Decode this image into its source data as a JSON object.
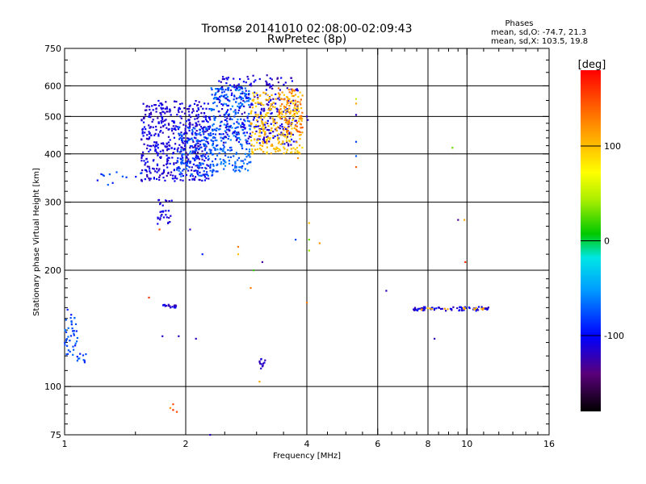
{
  "chart_data": {
    "type": "scatter",
    "title": "Tromsø 20141010 02:08:00-02:09:43",
    "subtitle": "RwPretec (8p)",
    "xlabel": "Frequency [MHz]",
    "ylabel": "Stationary phase Virtual Height [km]",
    "x_scale": "log",
    "y_scale": "log",
    "xlim": [
      1,
      16
    ],
    "ylim": [
      75,
      750
    ],
    "x_ticks": [
      1,
      2,
      4,
      6,
      8,
      10,
      16
    ],
    "x_tick_labels": [
      "1",
      "2",
      "4",
      "6",
      "8",
      "10",
      "16"
    ],
    "y_ticks": [
      75,
      100,
      200,
      300,
      400,
      500,
      600,
      750
    ],
    "y_tick_labels": [
      "75",
      "100",
      "200",
      "300",
      "400",
      "500",
      "600",
      "750"
    ],
    "x_gridlines": [
      2,
      4,
      6,
      8,
      10
    ],
    "y_gridlines": [
      100,
      200,
      300,
      400,
      500,
      600
    ],
    "grid": true,
    "legend": {
      "title": "Phases",
      "lines": [
        "mean, sd,O: -74.7, 21.3",
        "mean, sd,X: 103.5, 19.8"
      ],
      "position": "top-right"
    },
    "colorbar": {
      "label": "[deg]",
      "range": [
        -180,
        180
      ],
      "ticks": [
        100,
        0,
        -100
      ],
      "tick_labels": [
        "100",
        "0",
        "-100"
      ]
    },
    "clusters": [
      {
        "x": [
          1.55,
          2.3
        ],
        "y": [
          340,
          550
        ],
        "phase": -110,
        "n": 520
      },
      {
        "x": [
          1.9,
          2.4
        ],
        "y": [
          350,
          470
        ],
        "phase": -75,
        "n": 160
      },
      {
        "x": [
          2.3,
          2.9
        ],
        "y": [
          360,
          600
        ],
        "phase": -70,
        "n": 280
      },
      {
        "x": [
          2.4,
          3.3
        ],
        "y": [
          420,
          640
        ],
        "phase": -110,
        "n": 180
      },
      {
        "x": [
          3.1,
          3.8
        ],
        "y": [
          420,
          630
        ],
        "phase": -115,
        "n": 120
      },
      {
        "x": [
          2.9,
          3.9
        ],
        "y": [
          400,
          580
        ],
        "phase": 100,
        "n": 260
      },
      {
        "x": [
          3.4,
          3.9
        ],
        "y": [
          450,
          600
        ],
        "phase": 130,
        "n": 60
      },
      {
        "x": [
          1.2,
          1.55
        ],
        "y": [
          330,
          360
        ],
        "phase": -85,
        "n": 12
      },
      {
        "x": [
          1.7,
          1.85
        ],
        "y": [
          262,
          305
        ],
        "phase": -110,
        "n": 30
      },
      {
        "x": [
          1.75,
          1.9
        ],
        "y": [
          160,
          163
        ],
        "phase": -115,
        "n": 18
      },
      {
        "x": [
          1.0,
          1.08
        ],
        "y": [
          120,
          160
        ],
        "phase": -80,
        "n": 40
      },
      {
        "x": [
          1.07,
          1.13
        ],
        "y": [
          115,
          122
        ],
        "phase": -80,
        "n": 10
      },
      {
        "x": [
          3.05,
          3.15
        ],
        "y": [
          111,
          120
        ],
        "phase": -115,
        "n": 12
      },
      {
        "x": [
          7.3,
          11.4
        ],
        "y": [
          157,
          161
        ],
        "phase": -110,
        "n": 70
      },
      {
        "x": [
          7.6,
          11.0
        ],
        "y": [
          158,
          160
        ],
        "phase": 110,
        "n": 16
      }
    ],
    "points": [
      {
        "x": 1.62,
        "y": 170,
        "phase": 160
      },
      {
        "x": 1.83,
        "y": 88,
        "phase": 120
      },
      {
        "x": 1.86,
        "y": 90,
        "phase": 150
      },
      {
        "x": 1.86,
        "y": 87,
        "phase": 160
      },
      {
        "x": 1.9,
        "y": 86,
        "phase": 150
      },
      {
        "x": 1.72,
        "y": 255,
        "phase": 150
      },
      {
        "x": 2.05,
        "y": 255,
        "phase": -120
      },
      {
        "x": 2.2,
        "y": 220,
        "phase": -90
      },
      {
        "x": 2.7,
        "y": 230,
        "phase": 130
      },
      {
        "x": 2.7,
        "y": 220,
        "phase": 100
      },
      {
        "x": 3.1,
        "y": 210,
        "phase": -130
      },
      {
        "x": 2.95,
        "y": 200,
        "phase": 20
      },
      {
        "x": 2.9,
        "y": 180,
        "phase": 130
      },
      {
        "x": 1.75,
        "y": 135,
        "phase": -115
      },
      {
        "x": 1.92,
        "y": 135,
        "phase": -115
      },
      {
        "x": 2.12,
        "y": 133,
        "phase": -120
      },
      {
        "x": 2.3,
        "y": 75,
        "phase": -120
      },
      {
        "x": 3.05,
        "y": 103,
        "phase": 110
      },
      {
        "x": 3.8,
        "y": 390,
        "phase": 120
      },
      {
        "x": 4.0,
        "y": 500,
        "phase": -120
      },
      {
        "x": 4.02,
        "y": 490,
        "phase": -120
      },
      {
        "x": 4.0,
        "y": 165,
        "phase": 130
      },
      {
        "x": 4.05,
        "y": 265,
        "phase": 100
      },
      {
        "x": 4.05,
        "y": 240,
        "phase": 30
      },
      {
        "x": 4.05,
        "y": 225,
        "phase": 40
      },
      {
        "x": 4.3,
        "y": 235,
        "phase": 120
      },
      {
        "x": 3.75,
        "y": 240,
        "phase": -80
      },
      {
        "x": 5.3,
        "y": 555,
        "phase": 50
      },
      {
        "x": 5.3,
        "y": 540,
        "phase": 110
      },
      {
        "x": 5.3,
        "y": 505,
        "phase": -120
      },
      {
        "x": 5.3,
        "y": 430,
        "phase": -80
      },
      {
        "x": 5.3,
        "y": 395,
        "phase": -70
      },
      {
        "x": 5.3,
        "y": 370,
        "phase": 140
      },
      {
        "x": 6.3,
        "y": 177,
        "phase": -120
      },
      {
        "x": 8.3,
        "y": 133,
        "phase": -120
      },
      {
        "x": 9.2,
        "y": 415,
        "phase": 30
      },
      {
        "x": 9.5,
        "y": 270,
        "phase": -130
      },
      {
        "x": 9.85,
        "y": 270,
        "phase": 110
      },
      {
        "x": 9.9,
        "y": 210,
        "phase": 160
      }
    ]
  }
}
